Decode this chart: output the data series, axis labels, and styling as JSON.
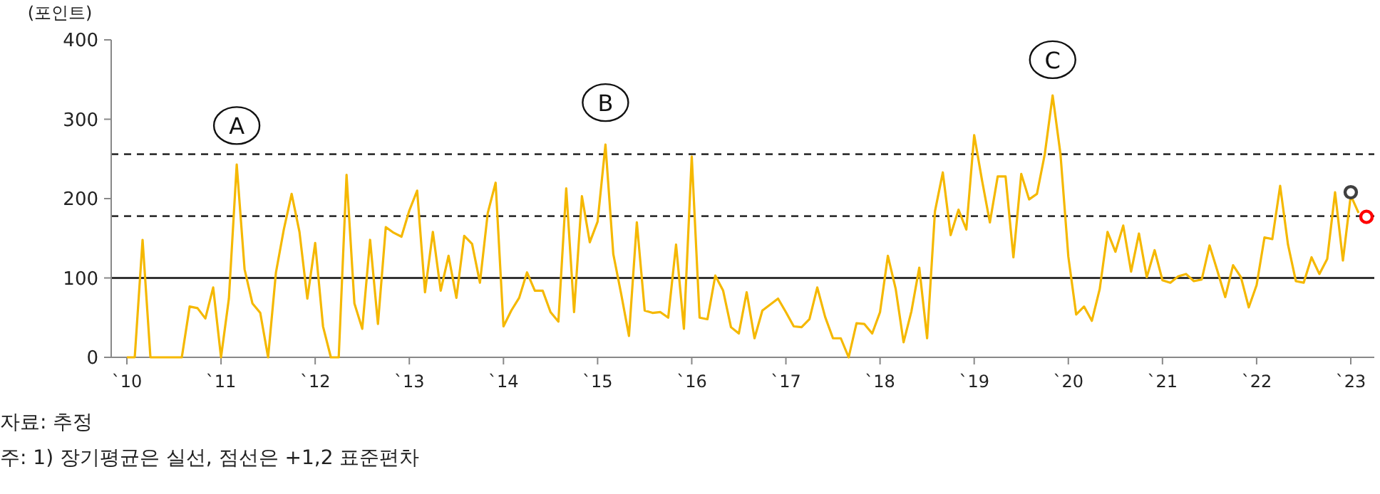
{
  "chart_data": {
    "type": "line",
    "ylabel": "(포인트)",
    "xlim": [
      "2009-11",
      "2023-04"
    ],
    "ylim": [
      0,
      400
    ],
    "xticks": [
      {
        "value": "2010",
        "label": "`10"
      },
      {
        "value": "2011",
        "label": "`11"
      },
      {
        "value": "2012",
        "label": "`12"
      },
      {
        "value": "2013",
        "label": "`13"
      },
      {
        "value": "2014",
        "label": "`14"
      },
      {
        "value": "2015",
        "label": "`15"
      },
      {
        "value": "2016",
        "label": "`16"
      },
      {
        "value": "2017",
        "label": "`17"
      },
      {
        "value": "2018",
        "label": "`18"
      },
      {
        "value": "2019",
        "label": "`19"
      },
      {
        "value": "2020",
        "label": "`20"
      },
      {
        "value": "2021",
        "label": "`21"
      },
      {
        "value": "2022",
        "label": "`22"
      },
      {
        "value": "2023",
        "label": "`23"
      }
    ],
    "yticks": [
      0,
      100,
      200,
      300,
      400
    ],
    "marker": "none",
    "ref_lines": [
      {
        "axis": "y",
        "value": 100,
        "color": "#333333",
        "line_style": "solid"
      },
      {
        "axis": "y",
        "value": 178,
        "color": "#333333",
        "line_style": "dashed"
      },
      {
        "axis": "y",
        "value": 256,
        "color": "#333333",
        "line_style": "dashed"
      }
    ],
    "series": [
      {
        "type": "line",
        "color": "#f5b800",
        "x": [
          "2010-01",
          "2010-02",
          "2010-03",
          "2010-04",
          "2010-08",
          "2010-09",
          "2010-10",
          "2010-11",
          "2010-12",
          "2011-01",
          "2011-02",
          "2011-03",
          "2011-04",
          "2011-05",
          "2011-06",
          "2011-07",
          "2011-08",
          "2011-09",
          "2011-10",
          "2011-11",
          "2011-12",
          "2012-01",
          "2012-02",
          "2012-03",
          "2012-04",
          "2012-05",
          "2012-06",
          "2012-07",
          "2012-08",
          "2012-09",
          "2012-10",
          "2012-11",
          "2012-12",
          "2013-01",
          "2013-02",
          "2013-03",
          "2013-04",
          "2013-05",
          "2013-06",
          "2013-07",
          "2013-08",
          "2013-09",
          "2013-10",
          "2013-11",
          "2013-12",
          "2014-01",
          "2014-02",
          "2014-03",
          "2014-04",
          "2014-05",
          "2014-06",
          "2014-07",
          "2014-08",
          "2014-09",
          "2014-10",
          "2014-11",
          "2014-12",
          "2015-01",
          "2015-02",
          "2015-03",
          "2015-04",
          "2015-05",
          "2015-06",
          "2015-07",
          "2015-08",
          "2015-09",
          "2015-10",
          "2015-11",
          "2015-12",
          "2016-01",
          "2016-02",
          "2016-03",
          "2016-04",
          "2016-05",
          "2016-06",
          "2016-07",
          "2016-08",
          "2016-09",
          "2016-10",
          "2016-12",
          "2017-01",
          "2017-02",
          "2017-03",
          "2017-04",
          "2017-05",
          "2017-06",
          "2017-07",
          "2017-08",
          "2017-09",
          "2017-10",
          "2017-11",
          "2017-12",
          "2018-01",
          "2018-02",
          "2018-03",
          "2018-04",
          "2018-05",
          "2018-06",
          "2018-07",
          "2018-08",
          "2018-09",
          "2018-10",
          "2018-11",
          "2018-12",
          "2019-01",
          "2019-02",
          "2019-03",
          "2019-04",
          "2019-05",
          "2019-06",
          "2019-07",
          "2019-08",
          "2019-09",
          "2019-10",
          "2019-11",
          "2019-12",
          "2020-01",
          "2020-02",
          "2020-03",
          "2020-04",
          "2020-05",
          "2020-06",
          "2020-07",
          "2020-08",
          "2020-09",
          "2020-10",
          "2020-11",
          "2020-12",
          "2021-01",
          "2021-02",
          "2021-03",
          "2021-04",
          "2021-05",
          "2021-06",
          "2021-07",
          "2021-08",
          "2021-09",
          "2021-10",
          "2021-11",
          "2021-12",
          "2022-01",
          "2022-02",
          "2022-03",
          "2022-04",
          "2022-05",
          "2022-06",
          "2022-07",
          "2022-08",
          "2022-09",
          "2022-10",
          "2022-11",
          "2022-12",
          "2023-01",
          "2023-02"
        ],
        "values": [
          0,
          0,
          148,
          0,
          0,
          64,
          62,
          49,
          88,
          0,
          74,
          243,
          111,
          68,
          56,
          0,
          107,
          161,
          206,
          158,
          74,
          144,
          39,
          0,
          0,
          230,
          68,
          36,
          148,
          42,
          164,
          157,
          152,
          185,
          210,
          82,
          158,
          84,
          128,
          75,
          153,
          143,
          94,
          182,
          220,
          39,
          59,
          75,
          107,
          84,
          84,
          57,
          45,
          213,
          57,
          203,
          145,
          171,
          268,
          130,
          80,
          27,
          170,
          59,
          56,
          57,
          50,
          142,
          36,
          253,
          50,
          48,
          103,
          84,
          38,
          30,
          82,
          24,
          59,
          74,
          57,
          39,
          38,
          48,
          88,
          51,
          24,
          24,
          0,
          43,
          42,
          30,
          57,
          128,
          86,
          19,
          58,
          113,
          24,
          184,
          233,
          154,
          186,
          161,
          280,
          223,
          170,
          228,
          228,
          126,
          231,
          199,
          206,
          256,
          330,
          256,
          127,
          54,
          64,
          46,
          86,
          158,
          133,
          166,
          108,
          156,
          101,
          135,
          97,
          94,
          102,
          105,
          96,
          98,
          141,
          109,
          76,
          116,
          101,
          63,
          91,
          151,
          149,
          216,
          142,
          96,
          94,
          126,
          105,
          124,
          208,
          122,
          204,
          182
        ]
      },
      {
        "type": "scatter",
        "marker": "circle",
        "color": "#404040",
        "x": [
          "2023-01"
        ],
        "values": [
          208
        ]
      },
      {
        "type": "scatter",
        "marker": "circle",
        "color": "#ff0000",
        "x": [
          "2023-03"
        ],
        "values": [
          177
        ]
      }
    ],
    "annotations": [
      {
        "text": "A",
        "x": "2011-03",
        "y": 292
      },
      {
        "text": "B",
        "x": "2015-02",
        "y": 321
      },
      {
        "text": "C",
        "x": "2019-11",
        "y": 375
      },
      "자료: 추정",
      "주: 1) 장기평균은 실선, 점선은 +1,2 표준편차"
    ]
  }
}
